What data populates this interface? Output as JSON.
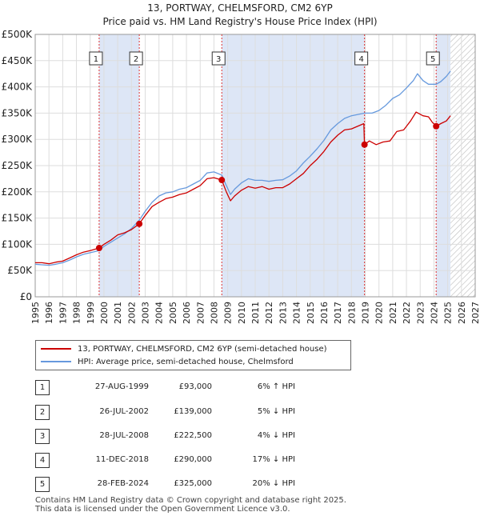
{
  "title_line1": "13, PORTWAY, CHELMSFORD, CM2 6YP",
  "title_line2": "Price paid vs. HM Land Registry's House Price Index (HPI)",
  "colors": {
    "property": "#cc0000",
    "hpi": "#6699dd",
    "band": "#dde6f6",
    "forecast_hatch": "#bbbbbb",
    "marker_line": "#dd3333"
  },
  "chart_data": {
    "type": "line",
    "ylim": [
      0,
      500000
    ],
    "xlim": [
      1995,
      2027
    ],
    "y_ticks": [
      {
        "value": 0,
        "label": "£0"
      },
      {
        "value": 50000,
        "label": "£50K"
      },
      {
        "value": 100000,
        "label": "£100K"
      },
      {
        "value": 150000,
        "label": "£150K"
      },
      {
        "value": 200000,
        "label": "£200K"
      },
      {
        "value": 250000,
        "label": "£250K"
      },
      {
        "value": 300000,
        "label": "£300K"
      },
      {
        "value": 350000,
        "label": "£350K"
      },
      {
        "value": 400000,
        "label": "£400K"
      },
      {
        "value": 450000,
        "label": "£450K"
      },
      {
        "value": 500000,
        "label": "£500K"
      }
    ],
    "x_ticks": [
      "1995",
      "1996",
      "1997",
      "1998",
      "1999",
      "2000",
      "2001",
      "2002",
      "2003",
      "2004",
      "2005",
      "2006",
      "2007",
      "2008",
      "2009",
      "2010",
      "2011",
      "2012",
      "2013",
      "2014",
      "2015",
      "2016",
      "2017",
      "2018",
      "2019",
      "2020",
      "2021",
      "2022",
      "2023",
      "2024",
      "2025",
      "2026",
      "2027"
    ],
    "forecast_start": 2025.2,
    "shaded_bands": [
      [
        1999.65,
        2002.57
      ],
      [
        2008.57,
        2018.95
      ],
      [
        2024.16,
        2025.2
      ]
    ],
    "series": [
      {
        "name": "13, PORTWAY, CHELMSFORD, CM2 6YP (semi-detached house)",
        "x": [
          1995,
          1995.5,
          1996,
          1996.5,
          1997,
          1997.5,
          1998,
          1998.5,
          1999,
          1999.65,
          2000,
          2000.5,
          2001,
          2001.5,
          2002,
          2002.57,
          2003,
          2003.5,
          2004,
          2004.5,
          2005,
          2005.5,
          2006,
          2006.5,
          2007,
          2007.5,
          2008,
          2008.57,
          2008.9,
          2009.2,
          2009.5,
          2010,
          2010.5,
          2011,
          2011.5,
          2012,
          2012.5,
          2013,
          2013.5,
          2014,
          2014.5,
          2015,
          2015.5,
          2016,
          2016.5,
          2017,
          2017.5,
          2018,
          2018.9,
          2018.95,
          2019.3,
          2019.8,
          2020.3,
          2020.8,
          2021.3,
          2021.8,
          2022.3,
          2022.7,
          2023.2,
          2023.6,
          2023.9,
          2024.16,
          2024.5,
          2024.9,
          2025.2
        ],
        "values": [
          65000,
          65000,
          63000,
          66000,
          68000,
          74000,
          80000,
          85000,
          88000,
          93000,
          100000,
          108000,
          118000,
          122000,
          128000,
          139000,
          155000,
          172000,
          180000,
          187000,
          190000,
          195000,
          198000,
          205000,
          212000,
          225000,
          227000,
          222500,
          200000,
          183000,
          192000,
          203000,
          210000,
          207000,
          210000,
          205000,
          208000,
          208000,
          215000,
          225000,
          235000,
          250000,
          262000,
          277000,
          295000,
          308000,
          318000,
          320000,
          330000,
          290000,
          297000,
          290000,
          295000,
          297000,
          315000,
          318000,
          335000,
          352000,
          345000,
          343000,
          332000,
          325000,
          330000,
          335000,
          345000
        ]
      },
      {
        "name": "HPI: Average price, semi-detached house, Chelmsford",
        "x": [
          1995,
          1995.5,
          1996,
          1996.5,
          1997,
          1997.5,
          1998,
          1998.5,
          1999,
          1999.65,
          2000,
          2000.5,
          2001,
          2001.5,
          2002,
          2002.57,
          2003,
          2003.5,
          2004,
          2004.5,
          2005,
          2005.5,
          2006,
          2006.5,
          2007,
          2007.5,
          2008,
          2008.57,
          2008.9,
          2009.2,
          2009.5,
          2010,
          2010.5,
          2011,
          2011.5,
          2012,
          2012.5,
          2013,
          2013.5,
          2014,
          2014.5,
          2015,
          2015.5,
          2016,
          2016.5,
          2017,
          2017.5,
          2018,
          2018.95,
          2019.5,
          2020,
          2020.5,
          2021,
          2021.5,
          2022,
          2022.5,
          2022.8,
          2023.2,
          2023.6,
          2024.16,
          2024.5,
          2024.9,
          2025.2
        ],
        "values": [
          62000,
          61000,
          60000,
          62000,
          65000,
          70000,
          76000,
          81000,
          84000,
          88000,
          96000,
          104000,
          112000,
          120000,
          130000,
          146000,
          163000,
          180000,
          192000,
          198000,
          200000,
          205000,
          208000,
          215000,
          222000,
          236000,
          238000,
          232000,
          212000,
          195000,
          205000,
          217000,
          225000,
          222000,
          222000,
          220000,
          222000,
          223000,
          230000,
          240000,
          255000,
          268000,
          282000,
          298000,
          318000,
          330000,
          340000,
          345000,
          350000,
          350000,
          355000,
          365000,
          378000,
          385000,
          398000,
          412000,
          425000,
          412000,
          405000,
          405000,
          410000,
          420000,
          430000
        ]
      }
    ],
    "transactions": [
      {
        "id": "1",
        "x": 1999.65,
        "price": 93000
      },
      {
        "id": "2",
        "x": 2002.57,
        "price": 139000
      },
      {
        "id": "3",
        "x": 2008.57,
        "price": 222500
      },
      {
        "id": "4",
        "x": 2018.95,
        "price": 290000
      },
      {
        "id": "5",
        "x": 2024.16,
        "price": 325000
      }
    ]
  },
  "legend": [
    {
      "label": "13, PORTWAY, CHELMSFORD, CM2 6YP (semi-detached house)",
      "color": "#cc0000"
    },
    {
      "label": "HPI: Average price, semi-detached house, Chelmsford",
      "color": "#6699dd"
    }
  ],
  "table": [
    {
      "num": "1",
      "date": "27-AUG-1999",
      "price": "£93,000",
      "hpi": "6% ↑ HPI"
    },
    {
      "num": "2",
      "date": "26-JUL-2002",
      "price": "£139,000",
      "hpi": "5% ↓ HPI"
    },
    {
      "num": "3",
      "date": "28-JUL-2008",
      "price": "£222,500",
      "hpi": "4% ↓ HPI"
    },
    {
      "num": "4",
      "date": "11-DEC-2018",
      "price": "£290,000",
      "hpi": "17% ↓ HPI"
    },
    {
      "num": "5",
      "date": "28-FEB-2024",
      "price": "£325,000",
      "hpi": "20% ↓ HPI"
    }
  ],
  "footer_line1": "Contains HM Land Registry data © Crown copyright and database right 2025.",
  "footer_line2": "This data is licensed under the Open Government Licence v3.0."
}
